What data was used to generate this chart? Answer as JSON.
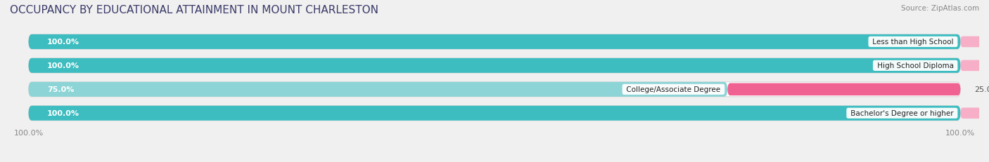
{
  "title": "OCCUPANCY BY EDUCATIONAL ATTAINMENT IN MOUNT CHARLESTON",
  "source": "Source: ZipAtlas.com",
  "categories": [
    "Less than High School",
    "High School Diploma",
    "College/Associate Degree",
    "Bachelor's Degree or higher"
  ],
  "owner_values": [
    100.0,
    100.0,
    75.0,
    100.0
  ],
  "renter_values": [
    0.0,
    0.0,
    25.0,
    0.0
  ],
  "owner_color_full": "#3dbdc0",
  "owner_color_light": "#8dd4d6",
  "renter_color_full": "#f06292",
  "renter_color_light": "#f7afc8",
  "bar_bg_color": "#ffffff",
  "bar_outline_color": "#d8d8d8",
  "background_color": "#f0f0f0",
  "title_color": "#3a3a6a",
  "label_color_white": "#ffffff",
  "label_color_dark": "#555555",
  "tick_color": "#888888",
  "source_color": "#888888",
  "title_fontsize": 11,
  "label_fontsize": 8,
  "tick_fontsize": 8,
  "legend_fontsize": 8,
  "source_fontsize": 7.5,
  "figsize": [
    14.06,
    2.32
  ],
  "dpi": 100
}
